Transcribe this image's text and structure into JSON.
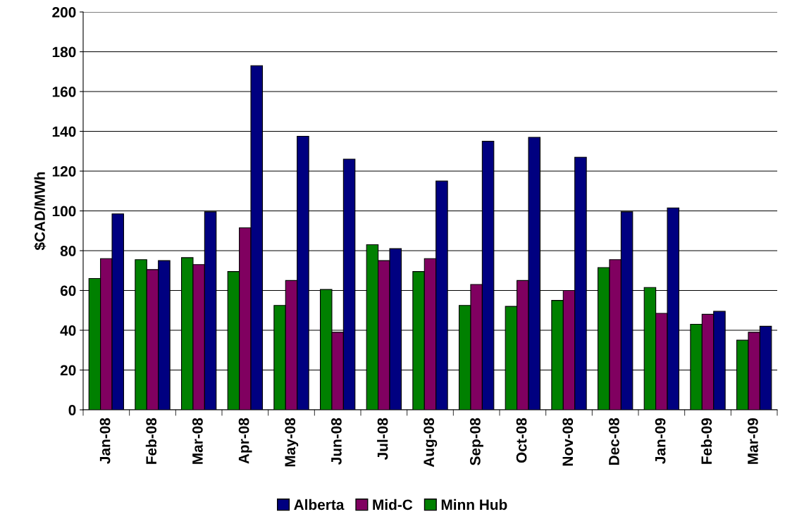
{
  "chart_data": {
    "type": "bar",
    "ylabel": "$CAD/MWh",
    "categories": [
      "Jan-08",
      "Feb-08",
      "Mar-08",
      "Apr-08",
      "May-08",
      "Jun-08",
      "Jul-08",
      "Aug-08",
      "Sep-08",
      "Oct-08",
      "Nov-08",
      "Dec-08",
      "Jan-09",
      "Feb-09",
      "Mar-09"
    ],
    "series": [
      {
        "name": "Minn Hub",
        "color": "#008000",
        "values": [
          66,
          75.5,
          76.5,
          69.5,
          52.5,
          60.5,
          83,
          69.5,
          52.5,
          52,
          55,
          71.5,
          61.5,
          43,
          35
        ]
      },
      {
        "name": "Mid-C",
        "color": "#800060",
        "values": [
          76,
          70.5,
          73,
          91.5,
          65,
          39,
          75,
          76,
          63,
          65,
          60,
          75.5,
          48.5,
          48,
          39
        ]
      },
      {
        "name": "Alberta",
        "color": "#000080",
        "values": [
          98.5,
          75,
          99.5,
          173,
          137.5,
          126,
          81,
          115,
          135,
          137,
          127,
          99.5,
          101.5,
          49.5,
          42
        ]
      }
    ],
    "ylim": [
      0,
      200
    ],
    "yticks": [
      0,
      20,
      40,
      60,
      80,
      100,
      120,
      140,
      160,
      180,
      200
    ],
    "grid": "y",
    "legend": "bottom"
  }
}
